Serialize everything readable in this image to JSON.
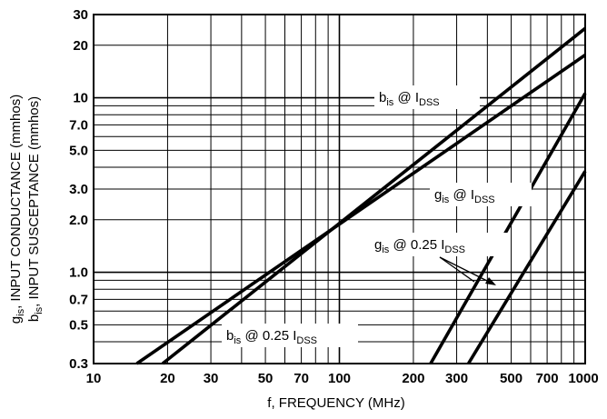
{
  "chart_data": {
    "type": "line",
    "x_scale": "log",
    "y_scale": "log",
    "xlim": [
      10,
      1000
    ],
    "ylim": [
      0.3,
      30
    ],
    "grid": true,
    "xlabel": "f, FREQUENCY (MHz)",
    "ylabel": {
      "line1": {
        "g": "g",
        "sub": "is",
        "rest": ", INPUT CONDUCTANCE (mmhos)"
      },
      "line2": {
        "b": "b",
        "sub": "is",
        "rest": ", INPUT SUSCEPTANCE (mmhos)"
      }
    },
    "x_ticks": [
      {
        "value": 10,
        "label": "10"
      },
      {
        "value": 20,
        "label": "20"
      },
      {
        "value": 30,
        "label": "30"
      },
      {
        "value": 50,
        "label": "50"
      },
      {
        "value": 70,
        "label": "70"
      },
      {
        "value": 100,
        "label": "100"
      },
      {
        "value": 200,
        "label": "200"
      },
      {
        "value": 300,
        "label": "300"
      },
      {
        "value": 500,
        "label": "500"
      },
      {
        "value": 700,
        "label": "700"
      },
      {
        "value": 1000,
        "label": "1000"
      }
    ],
    "y_ticks": [
      {
        "value": 0.3,
        "label": "0.3"
      },
      {
        "value": 0.5,
        "label": "0.5"
      },
      {
        "value": 0.7,
        "label": "0.7"
      },
      {
        "value": 1.0,
        "label": "1.0"
      },
      {
        "value": 2.0,
        "label": "2.0"
      },
      {
        "value": 3.0,
        "label": "3.0"
      },
      {
        "value": 5.0,
        "label": "5.0"
      },
      {
        "value": 7.0,
        "label": "7.0"
      },
      {
        "value": 10,
        "label": "10"
      },
      {
        "value": 20,
        "label": "20"
      },
      {
        "value": 30,
        "label": "30"
      }
    ],
    "series": [
      {
        "label": {
          "a": "b",
          "sub1": "is",
          "b": " @ I",
          "sub2": "DSS",
          "c": ""
        },
        "x": [
          19.1,
          1000
        ],
        "y": [
          0.3,
          25
        ]
      },
      {
        "label": {
          "a": "b",
          "sub1": "is",
          "b": " @ 0.25 I",
          "sub2": "DSS",
          "c": ""
        },
        "x": [
          15,
          1000
        ],
        "y": [
          0.3,
          17.6
        ]
      },
      {
        "label": {
          "a": "g",
          "sub1": "is",
          "b": " @ I",
          "sub2": "DSS",
          "c": ""
        },
        "x": [
          235,
          1000
        ],
        "y": [
          0.3,
          10.6
        ]
      },
      {
        "label": {
          "a": "g",
          "sub1": "is",
          "b": " @ 0.25 I",
          "sub2": "DSS",
          "c": ""
        },
        "x": [
          335,
          1000
        ],
        "y": [
          0.3,
          3.8
        ]
      }
    ]
  }
}
